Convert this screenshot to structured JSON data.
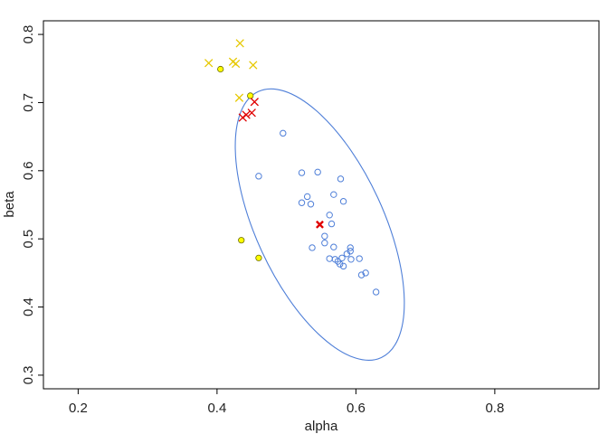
{
  "chart_data": {
    "type": "scatter",
    "title": "",
    "xlabel": "alpha",
    "ylabel": "beta",
    "xlim": [
      0.15,
      0.95
    ],
    "ylim": [
      0.28,
      0.82
    ],
    "xticks": [
      0.2,
      0.4,
      0.6,
      0.8
    ],
    "xtick_labels": [
      "0.2",
      "0.4",
      "0.6",
      "0.8"
    ],
    "yticks": [
      0.3,
      0.4,
      0.5,
      0.6,
      0.7,
      0.8
    ],
    "ytick_labels": [
      "0.3",
      "0.4",
      "0.5",
      "0.6",
      "0.7",
      "0.8"
    ],
    "grid": false,
    "colors": {
      "blue": "#4f7fd8",
      "yellow": "#ffff00",
      "yellow_outline": "#6b6b00",
      "yellow_cross": "#e6c800",
      "red": "#e00000",
      "ellipse": "#4f7fd8"
    },
    "ellipse": {
      "center": [
        0.548,
        0.521
      ],
      "rx": 0.092,
      "ry": 0.215,
      "rotation_deg": -24.8
    },
    "series": [
      {
        "marker": "open-circle",
        "color": "blue",
        "points": [
          [
            0.495,
            0.655
          ],
          [
            0.46,
            0.592
          ],
          [
            0.522,
            0.597
          ],
          [
            0.545,
            0.598
          ],
          [
            0.53,
            0.562
          ],
          [
            0.522,
            0.553
          ],
          [
            0.535,
            0.551
          ],
          [
            0.578,
            0.588
          ],
          [
            0.568,
            0.565
          ],
          [
            0.582,
            0.555
          ],
          [
            0.562,
            0.535
          ],
          [
            0.565,
            0.522
          ],
          [
            0.555,
            0.504
          ],
          [
            0.555,
            0.494
          ],
          [
            0.537,
            0.487
          ],
          [
            0.568,
            0.488
          ],
          [
            0.592,
            0.487
          ],
          [
            0.592,
            0.482
          ],
          [
            0.587,
            0.478
          ],
          [
            0.562,
            0.471
          ],
          [
            0.57,
            0.47
          ],
          [
            0.574,
            0.467
          ],
          [
            0.577,
            0.463
          ],
          [
            0.582,
            0.46
          ],
          [
            0.58,
            0.472
          ],
          [
            0.593,
            0.47
          ],
          [
            0.605,
            0.471
          ],
          [
            0.608,
            0.447
          ],
          [
            0.614,
            0.45
          ],
          [
            0.629,
            0.422
          ]
        ]
      },
      {
        "marker": "filled-circle",
        "color": "yellow",
        "points": [
          [
            0.405,
            0.749
          ],
          [
            0.448,
            0.71
          ],
          [
            0.435,
            0.498
          ],
          [
            0.46,
            0.472
          ]
        ]
      },
      {
        "marker": "cross",
        "color": "yellow_cross",
        "points": [
          [
            0.433,
            0.787
          ],
          [
            0.388,
            0.758
          ],
          [
            0.423,
            0.76
          ],
          [
            0.427,
            0.757
          ],
          [
            0.452,
            0.755
          ],
          [
            0.432,
            0.707
          ]
        ]
      },
      {
        "marker": "cross",
        "color": "red",
        "points": [
          [
            0.454,
            0.701
          ],
          [
            0.437,
            0.678
          ],
          [
            0.442,
            0.682
          ],
          [
            0.45,
            0.685
          ]
        ]
      },
      {
        "marker": "bold-cross",
        "color": "red",
        "points": [
          [
            0.548,
            0.521
          ]
        ]
      }
    ]
  }
}
